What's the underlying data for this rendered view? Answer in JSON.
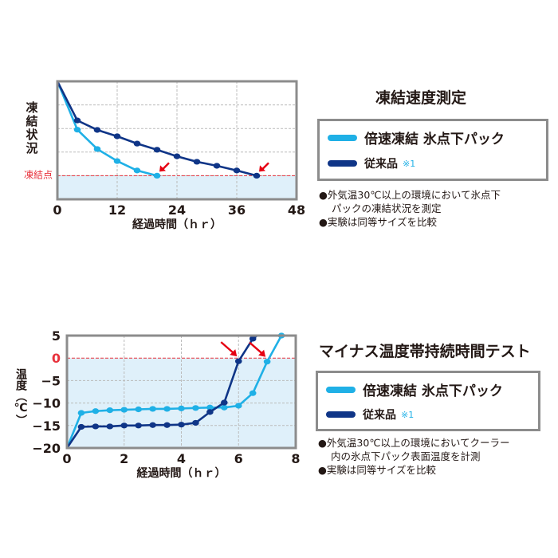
{
  "colors": {
    "fast": "#1fb0e6",
    "conventional": "#0f3587",
    "freeze_line": "#e8323c",
    "frozen_zone": "#dff0fa",
    "arrow": "#e60012",
    "frame": "#8c8c8c"
  },
  "chart_data": [
    {
      "type": "line",
      "title": "凍結速度測定",
      "xlabel": "経過時間（ｈｒ）",
      "ylabel": "凍結状況",
      "xlim": [
        0,
        48
      ],
      "ylim": [
        0,
        5
      ],
      "xticks": [
        0,
        12,
        24,
        36,
        48
      ],
      "yticks": [],
      "grid": true,
      "reference_line": {
        "label": "凍結点",
        "y": 1
      },
      "legend": {
        "position": "right",
        "entries": [
          "倍速凍結 氷点下パック",
          "従来品"
        ],
        "note": "※1"
      },
      "series": [
        {
          "name": "倍速凍結 氷点下パック",
          "key": "fast",
          "x": [
            0,
            4,
            8,
            12,
            16,
            20
          ],
          "y": [
            5,
            2.95,
            2.13,
            1.62,
            1.22,
            1.0
          ]
        },
        {
          "name": "従来品",
          "key": "conventional",
          "x": [
            0,
            4,
            8,
            12,
            16,
            20,
            24,
            28,
            32,
            36,
            40
          ],
          "y": [
            5,
            3.34,
            2.94,
            2.67,
            2.36,
            2.1,
            1.82,
            1.59,
            1.42,
            1.22,
            1.0
          ]
        }
      ],
      "arrows_at": [
        [
          20,
          1.0
        ],
        [
          40,
          1.0
        ]
      ],
      "notes": [
        "●外気温30℃以上の環境において氷点下",
        "パックの凍結状況を測定",
        "●実験は同等サイズを比較"
      ]
    },
    {
      "type": "line",
      "title": "マイナス温度帯持続時間テスト",
      "xlabel": "経過時間（ｈｒ）",
      "ylabel": "温度（℃）",
      "xlim": [
        0,
        8
      ],
      "ylim": [
        -20,
        5
      ],
      "xticks": [
        0,
        2,
        4,
        6,
        8
      ],
      "yticks": [
        5,
        0,
        -5,
        -10,
        -15,
        -20
      ],
      "ytick_labels": [
        "5",
        "0",
        "−5",
        "−10",
        "−15",
        "−20"
      ],
      "grid": true,
      "reference_line": {
        "label": "",
        "y": 0
      },
      "legend": {
        "position": "right",
        "entries": [
          "倍速凍結 氷点下パック",
          "従来品"
        ],
        "note": "※1"
      },
      "series": [
        {
          "name": "倍速凍結 氷点下パック",
          "key": "fast",
          "x": [
            0,
            0.5,
            1,
            1.5,
            2,
            2.5,
            3,
            3.5,
            4,
            4.5,
            5,
            5.5,
            6,
            6.5,
            7,
            7.5
          ],
          "y": [
            -20,
            -12.2,
            -11.8,
            -11.6,
            -11.5,
            -11.4,
            -11.3,
            -11.3,
            -11.2,
            -11.1,
            -11.0,
            -11.0,
            -10.6,
            -7.8,
            -0.8,
            5
          ]
        },
        {
          "name": "従来品",
          "key": "conventional",
          "x": [
            0,
            0.5,
            1,
            1.5,
            2,
            2.5,
            3,
            3.5,
            4,
            4.5,
            5,
            5.5,
            6,
            6.5
          ],
          "y": [
            -20,
            -15.3,
            -15.2,
            -15.2,
            -15.0,
            -15.0,
            -14.9,
            -14.9,
            -14.8,
            -14.4,
            -12.0,
            -9.9,
            -0.7,
            4.3
          ],
          "extend_to": [
            6.65,
            5
          ]
        }
      ],
      "arrows_at": [
        [
          6,
          -0.7
        ],
        [
          7,
          -0.8
        ]
      ],
      "notes": [
        "●外気温30℃以上の環境においてクーラー",
        "内の氷点下パック表面温度を計測",
        "●実験は同等サイズを比較"
      ]
    }
  ]
}
